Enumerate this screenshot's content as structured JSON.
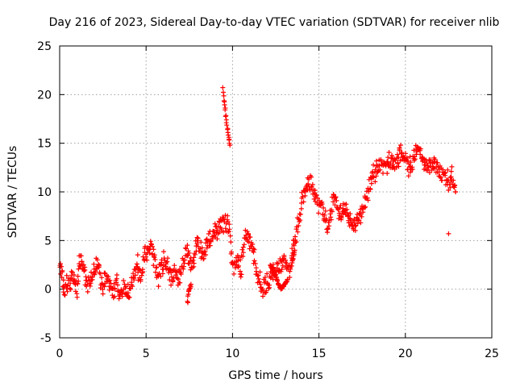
{
  "chart_data": {
    "type": "scatter",
    "title": "Day 216 of 2023, Sidereal Day-to-day VTEC variation (SDTVAR) for receiver nlib",
    "xlabel": "GPS time / hours",
    "ylabel": "SDTVAR / TECUs",
    "xlim": [
      0,
      25
    ],
    "ylim": [
      -5,
      25
    ],
    "xticks": [
      0,
      5,
      10,
      15,
      20,
      25
    ],
    "yticks": [
      -5,
      0,
      5,
      10,
      15,
      20,
      25
    ],
    "xtick_labels": [
      "0",
      "5",
      "10",
      "15",
      "20",
      "25"
    ],
    "ytick_labels": [
      "-5",
      "0",
      "5",
      "10",
      "15",
      "20",
      "25"
    ],
    "grid": true,
    "marker": "+",
    "color": "#ff0000",
    "series": [
      {
        "name": "SDTVAR",
        "track": [
          [
            0.0,
            3.0
          ],
          [
            0.1,
            2.0
          ],
          [
            0.2,
            0.3
          ],
          [
            0.35,
            0.0
          ],
          [
            0.5,
            0.8
          ],
          [
            0.7,
            1.2
          ],
          [
            0.9,
            0.9
          ],
          [
            1.0,
            0.2
          ],
          [
            1.1,
            1.5
          ],
          [
            1.15,
            3.0
          ],
          [
            1.3,
            2.5
          ],
          [
            1.5,
            1.2
          ],
          [
            1.7,
            0.5
          ],
          [
            1.9,
            1.6
          ],
          [
            2.1,
            2.3
          ],
          [
            2.3,
            1.5
          ],
          [
            2.5,
            0.5
          ],
          [
            2.7,
            1.5
          ],
          [
            2.9,
            0.5
          ],
          [
            3.1,
            -0.3
          ],
          [
            3.3,
            0.5
          ],
          [
            3.5,
            -1.0
          ],
          [
            3.7,
            0.2
          ],
          [
            3.9,
            -0.8
          ],
          [
            4.1,
            0.2
          ],
          [
            4.3,
            1.5
          ],
          [
            4.5,
            2.5
          ],
          [
            4.7,
            1.0
          ],
          [
            4.9,
            3.2
          ],
          [
            5.1,
            3.8
          ],
          [
            5.3,
            4.5
          ],
          [
            5.5,
            3.0
          ],
          [
            5.7,
            1.0
          ],
          [
            5.9,
            2.5
          ],
          [
            6.1,
            3.0
          ],
          [
            6.3,
            2.0
          ],
          [
            6.5,
            1.0
          ],
          [
            6.7,
            2.0
          ],
          [
            6.9,
            1.2
          ],
          [
            7.1,
            2.3
          ],
          [
            7.3,
            4.0
          ],
          [
            7.5,
            3.2
          ],
          [
            7.7,
            2.0
          ],
          [
            7.9,
            5.0
          ],
          [
            8.1,
            4.0
          ],
          [
            8.3,
            3.5
          ],
          [
            8.5,
            4.5
          ],
          [
            8.7,
            5.5
          ],
          [
            8.9,
            5.8
          ],
          [
            9.1,
            6.2
          ],
          [
            9.3,
            6.5
          ],
          [
            9.5,
            6.6
          ],
          [
            9.8,
            6.5
          ],
          [
            10.0,
            2.5
          ],
          [
            10.3,
            3.0
          ],
          [
            10.5,
            2.0
          ],
          [
            10.7,
            5.8
          ],
          [
            11.0,
            5.0
          ],
          [
            11.2,
            3.5
          ],
          [
            11.4,
            2.0
          ],
          [
            11.6,
            0.8
          ],
          [
            11.8,
            0.0
          ],
          [
            12.0,
            0.5
          ],
          [
            12.2,
            1.2
          ],
          [
            12.5,
            2.0
          ],
          [
            12.8,
            2.5
          ],
          [
            13.0,
            3.0
          ],
          [
            13.3,
            2.0
          ],
          [
            13.5,
            4.5
          ],
          [
            13.7,
            5.5
          ],
          [
            13.9,
            8.0
          ],
          [
            14.1,
            9.5
          ],
          [
            14.3,
            10.5
          ],
          [
            14.5,
            11.0
          ],
          [
            14.7,
            10.0
          ],
          [
            14.9,
            9.0
          ],
          [
            15.1,
            8.5
          ],
          [
            15.3,
            7.5
          ],
          [
            15.5,
            6.5
          ],
          [
            15.7,
            8.0
          ],
          [
            15.9,
            9.5
          ],
          [
            16.1,
            8.0
          ],
          [
            16.3,
            7.5
          ],
          [
            16.5,
            8.5
          ],
          [
            16.7,
            7.5
          ],
          [
            16.9,
            7.0
          ],
          [
            17.1,
            6.5
          ],
          [
            17.3,
            7.5
          ],
          [
            17.5,
            8.0
          ],
          [
            17.7,
            9.0
          ],
          [
            17.9,
            10.5
          ],
          [
            18.1,
            11.5
          ],
          [
            18.3,
            12.3
          ],
          [
            18.5,
            12.8
          ],
          [
            18.8,
            12.5
          ],
          [
            19.0,
            13.0
          ],
          [
            19.2,
            13.2
          ],
          [
            19.4,
            12.8
          ],
          [
            19.6,
            13.5
          ],
          [
            19.8,
            14.0
          ],
          [
            20.0,
            13.5
          ],
          [
            20.2,
            12.5
          ],
          [
            20.4,
            13.0
          ],
          [
            20.6,
            13.8
          ],
          [
            20.8,
            14.5
          ],
          [
            21.0,
            13.5
          ],
          [
            21.2,
            13.0
          ],
          [
            21.4,
            12.5
          ],
          [
            21.6,
            13.0
          ],
          [
            21.8,
            12.5
          ],
          [
            22.0,
            12.0
          ],
          [
            22.3,
            11.5
          ],
          [
            22.5,
            11.0
          ],
          [
            22.7,
            11.5
          ],
          [
            22.9,
            10.0
          ]
        ],
        "extra_segments": [
          [
            [
              9.45,
              20.6
            ],
            [
              9.5,
              19.5
            ],
            [
              9.6,
              18.0
            ],
            [
              9.7,
              16.5
            ],
            [
              9.85,
              14.8
            ]
          ],
          [
            [
              7.4,
              -1.5
            ],
            [
              7.45,
              -0.5
            ],
            [
              7.6,
              0.5
            ]
          ],
          [
            [
              12.2,
              2.5
            ],
            [
              12.8,
              0.0
            ],
            [
              13.2,
              1.0
            ]
          ],
          [
            [
              13.4,
              2.5
            ],
            [
              13.6,
              4.0
            ]
          ]
        ],
        "isolated_points": [
          [
            22.5,
            5.7
          ]
        ]
      }
    ]
  }
}
